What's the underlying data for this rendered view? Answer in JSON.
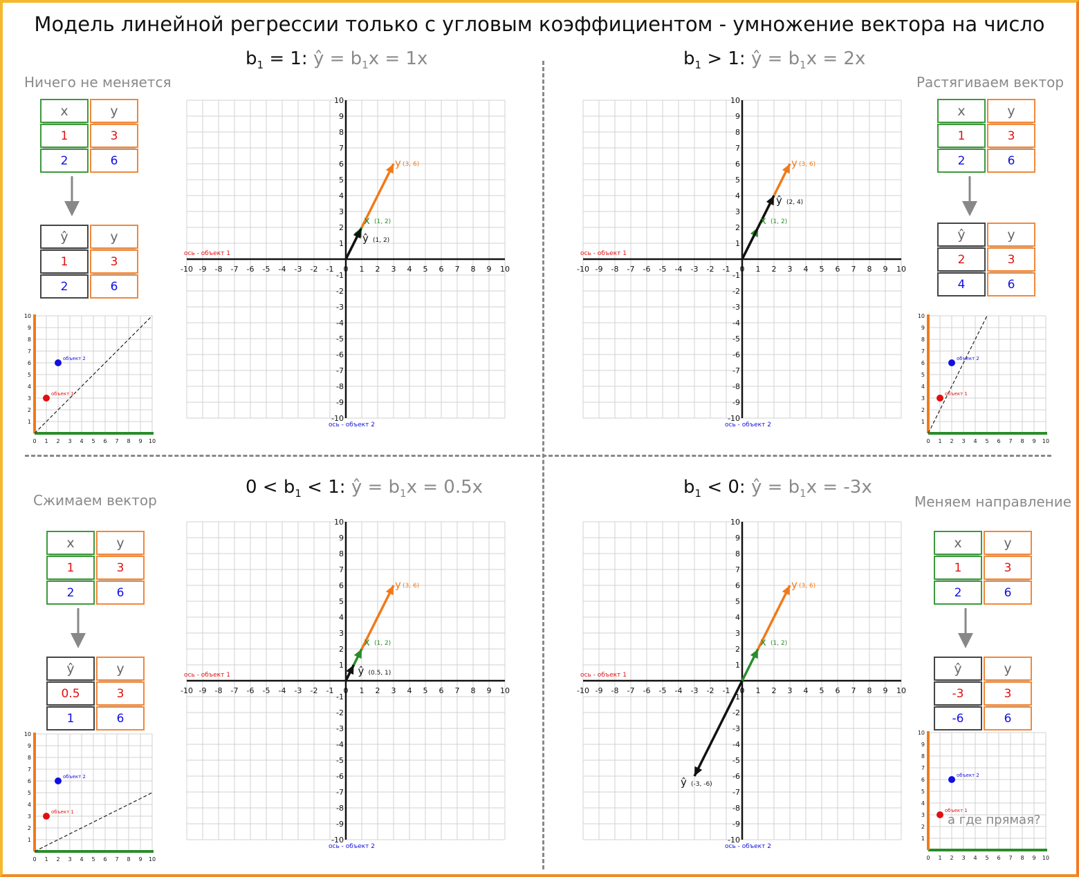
{
  "title": "Модель линейной регрессии только с угловым коэффициентом - умножение вектора на число",
  "colors": {
    "x_vec": "#2a8c2a",
    "y_vec": "#f07a1a",
    "yhat_vec": "#111111",
    "grid": "#d0d0d0",
    "obj1": "#e01010",
    "obj2": "#1010e0",
    "frame": "#f5b72e"
  },
  "quadrants": [
    {
      "id": "q1",
      "heading": {
        "cond": "b",
        "sub": "1",
        "rel": " = 1: ",
        "gpre": "ŷ = b",
        "gsub": "1",
        "gpost": "x = 1x"
      },
      "caption": "Ничего не меняется",
      "table_top": {
        "headers": [
          "x",
          "y"
        ],
        "rows": [
          [
            "1",
            "3"
          ],
          [
            "2",
            "6"
          ]
        ]
      },
      "table_bottom": {
        "headers": [
          "ŷ",
          "y"
        ],
        "rows": [
          [
            "1",
            "3"
          ],
          [
            "2",
            "6"
          ]
        ]
      },
      "b1": 1,
      "yhat_label": "ŷ",
      "yhat_coords": "(1, 2)",
      "x_label": "x",
      "x_coords": "(1, 2)",
      "y_label": "y",
      "y_coords": "(3, 6)",
      "axis_x_label": "ось - объект 1",
      "axis_y_label": "ось - объект 2",
      "mini": {
        "obj1": "объект 1",
        "obj2": "объект 2",
        "line": true
      }
    },
    {
      "id": "q2",
      "heading": {
        "cond": "b",
        "sub": "1",
        "rel": " > 1: ",
        "gpre": "ŷ = b",
        "gsub": "1",
        "gpost": "x = 2x"
      },
      "caption": "Растягиваем вектор",
      "table_top": {
        "headers": [
          "x",
          "y"
        ],
        "rows": [
          [
            "1",
            "3"
          ],
          [
            "2",
            "6"
          ]
        ]
      },
      "table_bottom": {
        "headers": [
          "ŷ",
          "y"
        ],
        "rows": [
          [
            "2",
            "3"
          ],
          [
            "4",
            "6"
          ]
        ]
      },
      "b1": 2,
      "yhat_label": "ŷ",
      "yhat_coords": "(2, 4)",
      "x_label": "x",
      "x_coords": "(1, 2)",
      "y_label": "y",
      "y_coords": "(3, 6)",
      "axis_x_label": "ось - объект 1",
      "axis_y_label": "ось - объект 2",
      "mini": {
        "obj1": "объект 1",
        "obj2": "объект 2",
        "line": true
      }
    },
    {
      "id": "q3",
      "heading": {
        "cond": "0 < b",
        "sub": "1",
        "rel": " < 1: ",
        "gpre": "ŷ = b",
        "gsub": "1",
        "gpost": "x = 0.5x"
      },
      "caption": "Сжимаем вектор",
      "table_top": {
        "headers": [
          "x",
          "y"
        ],
        "rows": [
          [
            "1",
            "3"
          ],
          [
            "2",
            "6"
          ]
        ]
      },
      "table_bottom": {
        "headers": [
          "ŷ",
          "y"
        ],
        "rows": [
          [
            "0.5",
            "3"
          ],
          [
            "1",
            "6"
          ]
        ]
      },
      "b1": 0.5,
      "yhat_label": "ŷ",
      "yhat_coords": "(0.5, 1)",
      "x_label": "x",
      "x_coords": "(1, 2)",
      "y_label": "y",
      "y_coords": "(3, 6)",
      "axis_x_label": "ось - объект 1",
      "axis_y_label": "ось - объект 2",
      "mini": {
        "obj1": "объект 1",
        "obj2": "объект 2",
        "line": true
      }
    },
    {
      "id": "q4",
      "heading": {
        "cond": "b",
        "sub": "1",
        "rel": " < 0: ",
        "gpre": "ŷ = b",
        "gsub": "1",
        "gpost": "x = -3x"
      },
      "caption": "Меняем направление",
      "table_top": {
        "headers": [
          "x",
          "y"
        ],
        "rows": [
          [
            "1",
            "3"
          ],
          [
            "2",
            "6"
          ]
        ]
      },
      "table_bottom": {
        "headers": [
          "ŷ",
          "y"
        ],
        "rows": [
          [
            "-3",
            "3"
          ],
          [
            "-6",
            "6"
          ]
        ]
      },
      "b1": -3,
      "yhat_label": "ŷ",
      "yhat_coords": "(-3, -6)",
      "x_label": "x",
      "x_coords": "(1, 2)",
      "y_label": "y",
      "y_coords": "(3, 6)",
      "axis_x_label": "ось - объект 1",
      "axis_y_label": "ось - объект 2",
      "mini": {
        "obj1": "объект 1",
        "obj2": "объект 2",
        "line": false,
        "note": "а где прямая?"
      }
    }
  ],
  "axis_ticks": [
    "-10",
    "-9",
    "-8",
    "-7",
    "-6",
    "-5",
    "-4",
    "-3",
    "-2",
    "-1",
    "0",
    "1",
    "2",
    "3",
    "4",
    "5",
    "6",
    "7",
    "8",
    "9",
    "10"
  ],
  "mini_ticks": [
    "0",
    "1",
    "2",
    "3",
    "4",
    "5",
    "6",
    "7",
    "8",
    "9",
    "10"
  ]
}
